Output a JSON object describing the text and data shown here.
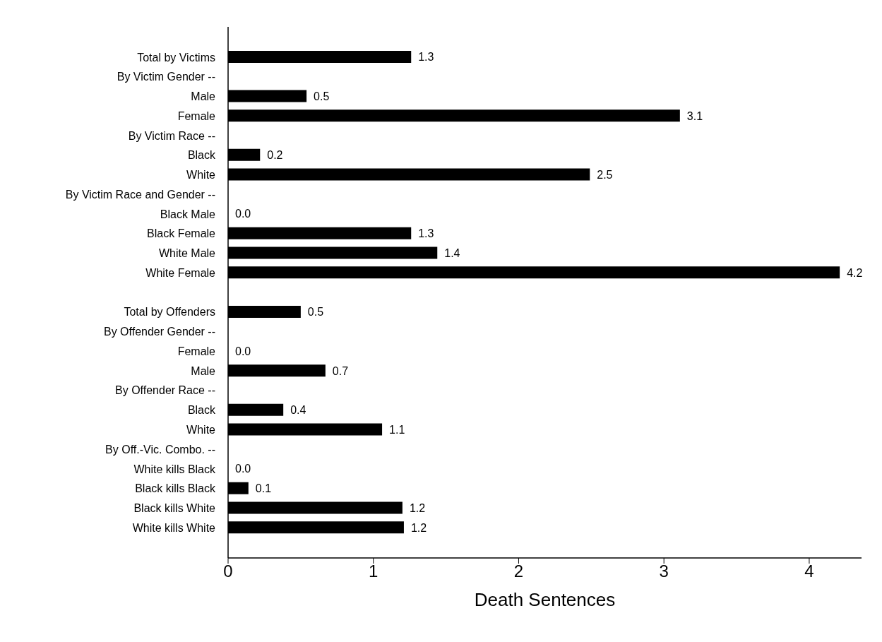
{
  "chart_data": {
    "type": "bar",
    "orientation": "horizontal",
    "xlabel": "Death Sentences",
    "categories": [
      "Total by Victims",
      "By Victim Gender --",
      "Male",
      "Female",
      "By Victim Race --",
      "Black",
      "White",
      "By Victim Race and Gender --",
      "Black Male",
      "Black Female",
      "White Male",
      "White Female",
      null,
      "Total by Offenders",
      "By Offender Gender --",
      "Female",
      "Male",
      "By Offender Race --",
      "Black",
      "White",
      "By Off.-Vic. Combo. --",
      "White kills Black",
      "Black kills Black",
      "Black kills White",
      "White kills White"
    ],
    "values": [
      1.26,
      null,
      0.54,
      3.11,
      null,
      0.22,
      2.49,
      null,
      0,
      1.26,
      1.44,
      4.21,
      null,
      0.5,
      null,
      0,
      0.67,
      null,
      0.38,
      1.06,
      null,
      0,
      0.14,
      1.2,
      1.21
    ],
    "value_labels": [
      "1.3",
      null,
      "0.5",
      "3.1",
      null,
      "0.2",
      "2.5",
      null,
      "0.0",
      "1.3",
      "1.4",
      "4.2",
      null,
      "0.5",
      null,
      "0.0",
      "0.7",
      null,
      "0.4",
      "1.1",
      null,
      "0.0",
      "0.1",
      "1.2",
      "1.2"
    ],
    "color": "#000000",
    "xlim": [
      0,
      4.36
    ],
    "xticks": [
      0,
      1,
      2,
      3,
      4
    ]
  }
}
